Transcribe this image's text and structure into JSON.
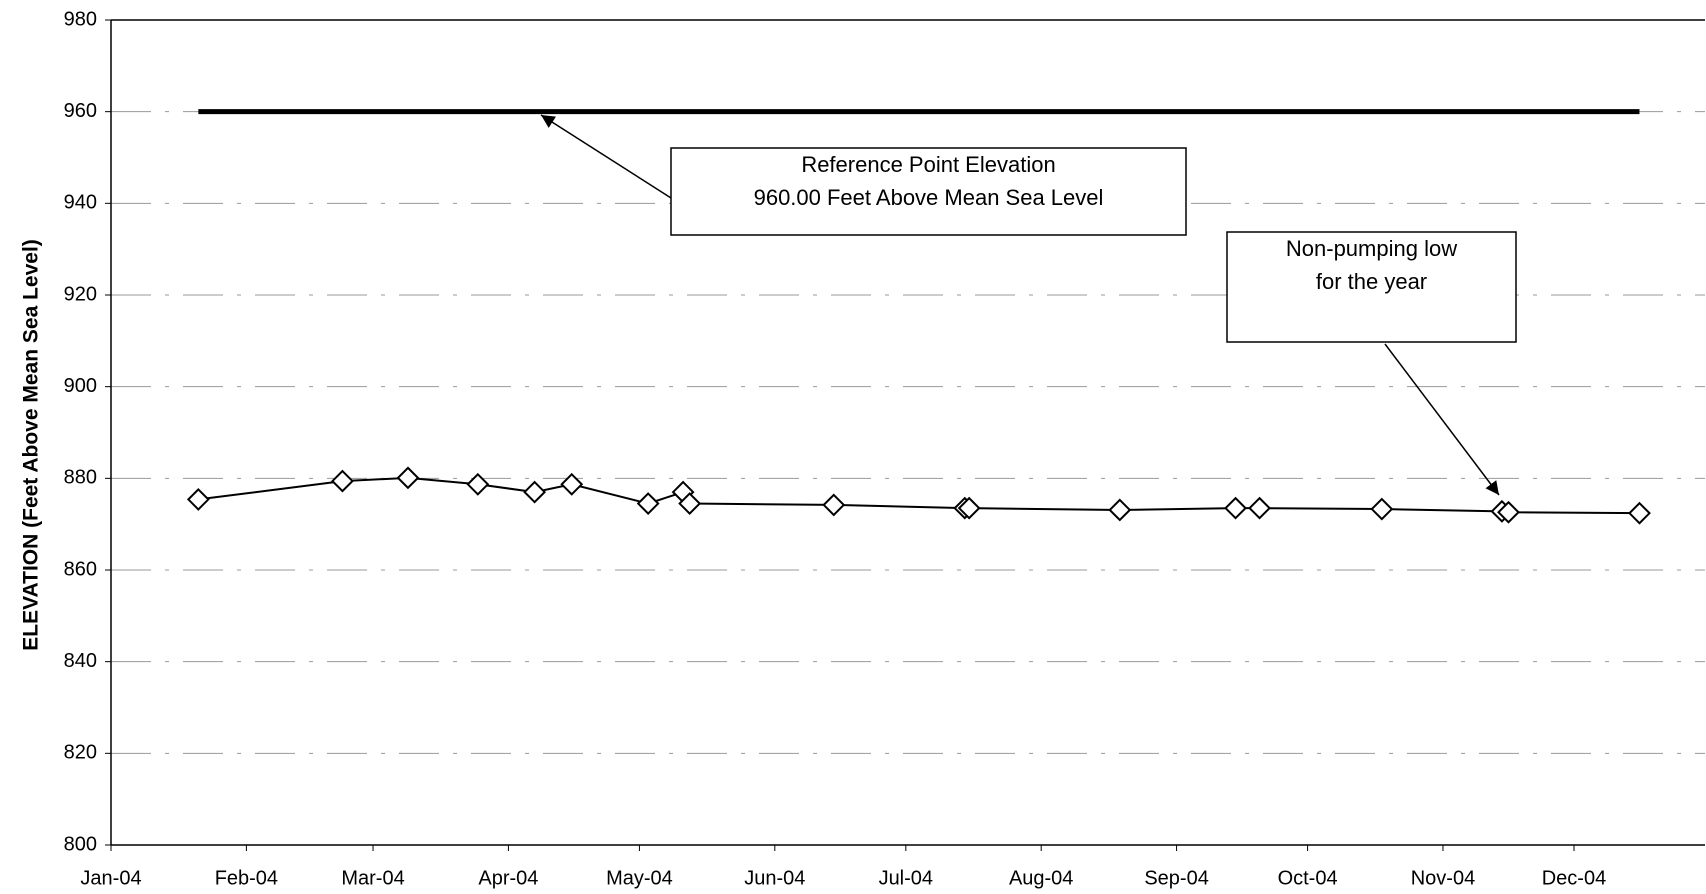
{
  "chart_data": {
    "type": "line",
    "y_label": "ELEVATION (Feet Above Mean Sea Level)",
    "x": [
      20,
      53,
      68,
      84,
      97,
      105.5,
      123,
      131,
      132.5,
      165.5,
      195.5,
      196.5,
      231,
      257.5,
      263,
      291,
      318.5,
      320,
      350
    ],
    "values": [
      875.4,
      879.4,
      880.1,
      878.7,
      877.0,
      878.7,
      874.5,
      877.0,
      874.5,
      874.2,
      873.5,
      873.5,
      873.1,
      873.5,
      873.5,
      873.3,
      872.8,
      872.6,
      872.4
    ],
    "color": "#000000",
    "marker": "diamond",
    "reference_line": {
      "value": 960,
      "x": [
        20,
        350
      ]
    },
    "annotations": [
      {
        "lines": [
          "Reference Point Elevation",
          "960.00 Feet Above Mean Sea Level"
        ]
      },
      {
        "lines": [
          "Non-pumping low",
          "for the year"
        ]
      }
    ],
    "xlim": [
      0,
      365
    ],
    "xticks": [
      {
        "value": 0,
        "label": "Jan-04"
      },
      {
        "value": 31,
        "label": "Feb-04"
      },
      {
        "value": 60,
        "label": "Mar-04"
      },
      {
        "value": 91,
        "label": "Apr-04"
      },
      {
        "value": 121,
        "label": "May-04"
      },
      {
        "value": 152,
        "label": "Jun-04"
      },
      {
        "value": 182,
        "label": "Jul-04"
      },
      {
        "value": 213,
        "label": "Aug-04"
      },
      {
        "value": 244,
        "label": "Sep-04"
      },
      {
        "value": 274,
        "label": "Oct-04"
      },
      {
        "value": 305,
        "label": "Nov-04"
      },
      {
        "value": 335,
        "label": "Dec-04"
      }
    ],
    "ylim": [
      800,
      980
    ],
    "yticks": [
      800,
      820,
      840,
      860,
      880,
      900,
      920,
      940,
      960,
      980
    ],
    "grid": true
  }
}
